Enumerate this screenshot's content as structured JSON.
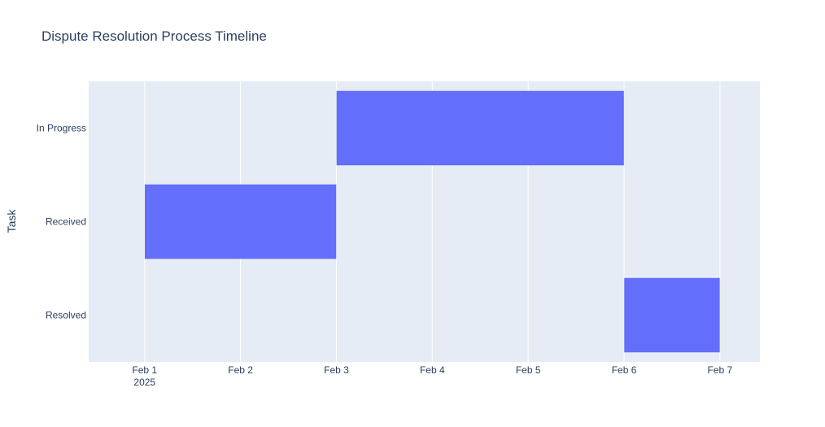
{
  "chart_data": {
    "type": "bar",
    "orientation": "horizontal",
    "title": "Dispute Resolution Process Timeline",
    "xlabel": "",
    "ylabel": "Task",
    "categories": [
      "In Progress",
      "Received",
      "Resolved"
    ],
    "tasks": [
      {
        "name": "Received",
        "start": "2025-02-01",
        "end": "2025-02-03"
      },
      {
        "name": "In Progress",
        "start": "2025-02-03",
        "end": "2025-02-06"
      },
      {
        "name": "Resolved",
        "start": "2025-02-06",
        "end": "2025-02-07"
      }
    ],
    "xticks": [
      {
        "date": "2025-02-01",
        "label": "Feb 1",
        "sublabel": "2025"
      },
      {
        "date": "2025-02-02",
        "label": "Feb 2",
        "sublabel": ""
      },
      {
        "date": "2025-02-03",
        "label": "Feb 3",
        "sublabel": ""
      },
      {
        "date": "2025-02-04",
        "label": "Feb 4",
        "sublabel": ""
      },
      {
        "date": "2025-02-05",
        "label": "Feb 5",
        "sublabel": ""
      },
      {
        "date": "2025-02-06",
        "label": "Feb 6",
        "sublabel": ""
      },
      {
        "date": "2025-02-07",
        "label": "Feb 7",
        "sublabel": ""
      }
    ],
    "xlim": [
      "2025-01-31T10:00",
      "2025-02-07T10:00"
    ],
    "bar_color": "#636efa",
    "plot_bg": "#e5ecf6",
    "grid": true,
    "legend": "none"
  }
}
